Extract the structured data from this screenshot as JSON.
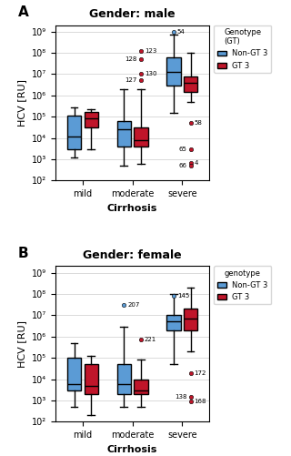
{
  "chart_data": [
    {
      "type": "box",
      "title": "Gender: male",
      "label": "A",
      "xlabel": "Cirrhosis",
      "ylabel": "HCV [RU]",
      "categories": [
        "mild",
        "moderate",
        "severe"
      ],
      "series": [
        {
          "name": "Non-GT 3",
          "color": "#5B9BD5",
          "q1": [
            3000,
            4000,
            3000000
          ],
          "median": [
            12000,
            25000,
            13000000
          ],
          "q3": [
            110000,
            65000,
            60000000
          ],
          "whislo": [
            1200,
            500,
            150000
          ],
          "whishi": [
            280000,
            2000000,
            700000000
          ],
          "outliers": [
            [],
            [],
            [
              {
                "value": 1000000000,
                "label": "54"
              }
            ]
          ]
        },
        {
          "name": "GT 3",
          "color": "#C0152A",
          "q1": [
            30000,
            4000,
            1500000
          ],
          "median": [
            85000,
            8000,
            4000000
          ],
          "q3": [
            160000,
            30000,
            8000000
          ],
          "whislo": [
            3000,
            600,
            500000
          ],
          "whishi": [
            220000,
            2000000,
            100000000
          ],
          "outliers": [
            [],
            [
              {
                "value": 120000000,
                "label": "123"
              },
              {
                "value": 50000000,
                "label": "128"
              },
              {
                "value": 10000000,
                "label": "130"
              },
              {
                "value": 5000000,
                "label": "127"
              }
            ],
            [
              {
                "value": 50000,
                "label": "58"
              },
              {
                "value": 3000,
                "label": "65"
              },
              {
                "value": 700,
                "label": "4"
              },
              {
                "value": 500,
                "label": "66"
              }
            ]
          ]
        }
      ],
      "legend_title": "Genotype\n(GT)",
      "legend": "upper left",
      "log": "y",
      "ylim": [
        100,
        2000000000
      ],
      "yticks": [
        {
          "value": 100,
          "label": "10²"
        },
        {
          "value": 1000,
          "label": "10³"
        },
        {
          "value": 10000,
          "label": "10⁴"
        },
        {
          "value": 100000,
          "label": "10⁵"
        },
        {
          "value": 1000000,
          "label": "10⁶"
        },
        {
          "value": 10000000,
          "label": "10⁷"
        },
        {
          "value": 100000000,
          "label": "10⁸"
        },
        {
          "value": 1000000000,
          "label": "10⁹"
        }
      ],
      "grid": true
    },
    {
      "type": "box",
      "title": "Gender: female",
      "label": "B",
      "xlabel": "Cirrhosis",
      "ylabel": "HCV [RU]",
      "categories": [
        "mild",
        "moderate",
        "severe"
      ],
      "series": [
        {
          "name": "Non-GT 3",
          "color": "#5B9BD5",
          "q1": [
            3000,
            2000,
            2000000
          ],
          "median": [
            6000,
            6000,
            5000000
          ],
          "q3": [
            100000,
            50000,
            10000000
          ],
          "whislo": [
            500,
            500,
            50000
          ],
          "whishi": [
            500000,
            3000000,
            100000000
          ],
          "outliers": [
            [],
            [
              {
                "value": 30000000,
                "label": "207"
              }
            ],
            [
              {
                "value": 80000000,
                "label": "145"
              }
            ]
          ]
        },
        {
          "name": "GT 3",
          "color": "#C0152A",
          "q1": [
            2000,
            2000,
            2000000
          ],
          "median": [
            5000,
            3000,
            7000000
          ],
          "q3": [
            50000,
            10000,
            20000000
          ],
          "whislo": [
            200,
            500,
            200000
          ],
          "whishi": [
            120000,
            80000,
            200000000
          ],
          "outliers": [
            [],
            [
              {
                "value": 700000,
                "label": "221"
              }
            ],
            [
              {
                "value": 20000,
                "label": "172"
              },
              {
                "value": 1500,
                "label": "138"
              },
              {
                "value": 900,
                "label": "168"
              }
            ]
          ]
        }
      ],
      "legend_title": "genotype",
      "legend": "upper left",
      "log": "y",
      "ylim": [
        100,
        2000000000
      ],
      "yticks": [
        {
          "value": 100,
          "label": "10²"
        },
        {
          "value": 1000,
          "label": "10³"
        },
        {
          "value": 10000,
          "label": "10⁴"
        },
        {
          "value": 100000,
          "label": "10⁵"
        },
        {
          "value": 1000000,
          "label": "10⁶"
        },
        {
          "value": 10000000,
          "label": "10⁷"
        },
        {
          "value": 100000000,
          "label": "10⁸"
        },
        {
          "value": 1000000000,
          "label": "10⁹"
        }
      ],
      "grid": true
    }
  ]
}
